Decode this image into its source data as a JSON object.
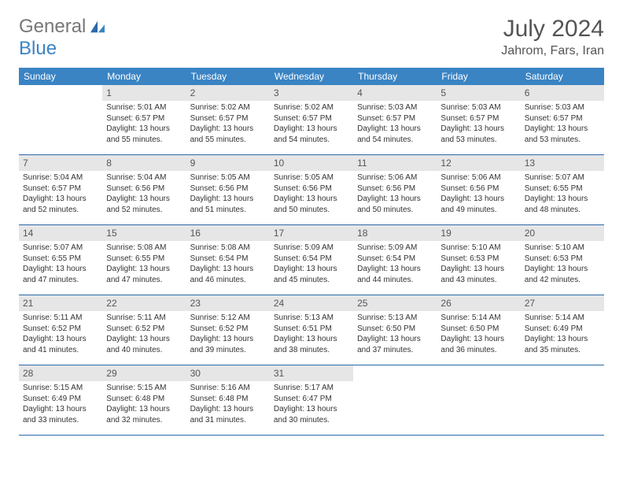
{
  "logo": {
    "text1": "General",
    "text2": "Blue"
  },
  "title": "July 2024",
  "location": "Jahrom, Fars, Iran",
  "colors": {
    "header_bg": "#3a84c4",
    "rule": "#2a6aa8",
    "daynum_bg": "#e6e6e6",
    "text": "#333333",
    "title_text": "#555555"
  },
  "days_of_week": [
    "Sunday",
    "Monday",
    "Tuesday",
    "Wednesday",
    "Thursday",
    "Friday",
    "Saturday"
  ],
  "weeks": [
    [
      {
        "n": "",
        "sr": "",
        "ss": "",
        "dl": ""
      },
      {
        "n": "1",
        "sr": "Sunrise: 5:01 AM",
        "ss": "Sunset: 6:57 PM",
        "dl": "Daylight: 13 hours and 55 minutes."
      },
      {
        "n": "2",
        "sr": "Sunrise: 5:02 AM",
        "ss": "Sunset: 6:57 PM",
        "dl": "Daylight: 13 hours and 55 minutes."
      },
      {
        "n": "3",
        "sr": "Sunrise: 5:02 AM",
        "ss": "Sunset: 6:57 PM",
        "dl": "Daylight: 13 hours and 54 minutes."
      },
      {
        "n": "4",
        "sr": "Sunrise: 5:03 AM",
        "ss": "Sunset: 6:57 PM",
        "dl": "Daylight: 13 hours and 54 minutes."
      },
      {
        "n": "5",
        "sr": "Sunrise: 5:03 AM",
        "ss": "Sunset: 6:57 PM",
        "dl": "Daylight: 13 hours and 53 minutes."
      },
      {
        "n": "6",
        "sr": "Sunrise: 5:03 AM",
        "ss": "Sunset: 6:57 PM",
        "dl": "Daylight: 13 hours and 53 minutes."
      }
    ],
    [
      {
        "n": "7",
        "sr": "Sunrise: 5:04 AM",
        "ss": "Sunset: 6:57 PM",
        "dl": "Daylight: 13 hours and 52 minutes."
      },
      {
        "n": "8",
        "sr": "Sunrise: 5:04 AM",
        "ss": "Sunset: 6:56 PM",
        "dl": "Daylight: 13 hours and 52 minutes."
      },
      {
        "n": "9",
        "sr": "Sunrise: 5:05 AM",
        "ss": "Sunset: 6:56 PM",
        "dl": "Daylight: 13 hours and 51 minutes."
      },
      {
        "n": "10",
        "sr": "Sunrise: 5:05 AM",
        "ss": "Sunset: 6:56 PM",
        "dl": "Daylight: 13 hours and 50 minutes."
      },
      {
        "n": "11",
        "sr": "Sunrise: 5:06 AM",
        "ss": "Sunset: 6:56 PM",
        "dl": "Daylight: 13 hours and 50 minutes."
      },
      {
        "n": "12",
        "sr": "Sunrise: 5:06 AM",
        "ss": "Sunset: 6:56 PM",
        "dl": "Daylight: 13 hours and 49 minutes."
      },
      {
        "n": "13",
        "sr": "Sunrise: 5:07 AM",
        "ss": "Sunset: 6:55 PM",
        "dl": "Daylight: 13 hours and 48 minutes."
      }
    ],
    [
      {
        "n": "14",
        "sr": "Sunrise: 5:07 AM",
        "ss": "Sunset: 6:55 PM",
        "dl": "Daylight: 13 hours and 47 minutes."
      },
      {
        "n": "15",
        "sr": "Sunrise: 5:08 AM",
        "ss": "Sunset: 6:55 PM",
        "dl": "Daylight: 13 hours and 47 minutes."
      },
      {
        "n": "16",
        "sr": "Sunrise: 5:08 AM",
        "ss": "Sunset: 6:54 PM",
        "dl": "Daylight: 13 hours and 46 minutes."
      },
      {
        "n": "17",
        "sr": "Sunrise: 5:09 AM",
        "ss": "Sunset: 6:54 PM",
        "dl": "Daylight: 13 hours and 45 minutes."
      },
      {
        "n": "18",
        "sr": "Sunrise: 5:09 AM",
        "ss": "Sunset: 6:54 PM",
        "dl": "Daylight: 13 hours and 44 minutes."
      },
      {
        "n": "19",
        "sr": "Sunrise: 5:10 AM",
        "ss": "Sunset: 6:53 PM",
        "dl": "Daylight: 13 hours and 43 minutes."
      },
      {
        "n": "20",
        "sr": "Sunrise: 5:10 AM",
        "ss": "Sunset: 6:53 PM",
        "dl": "Daylight: 13 hours and 42 minutes."
      }
    ],
    [
      {
        "n": "21",
        "sr": "Sunrise: 5:11 AM",
        "ss": "Sunset: 6:52 PM",
        "dl": "Daylight: 13 hours and 41 minutes."
      },
      {
        "n": "22",
        "sr": "Sunrise: 5:11 AM",
        "ss": "Sunset: 6:52 PM",
        "dl": "Daylight: 13 hours and 40 minutes."
      },
      {
        "n": "23",
        "sr": "Sunrise: 5:12 AM",
        "ss": "Sunset: 6:52 PM",
        "dl": "Daylight: 13 hours and 39 minutes."
      },
      {
        "n": "24",
        "sr": "Sunrise: 5:13 AM",
        "ss": "Sunset: 6:51 PM",
        "dl": "Daylight: 13 hours and 38 minutes."
      },
      {
        "n": "25",
        "sr": "Sunrise: 5:13 AM",
        "ss": "Sunset: 6:50 PM",
        "dl": "Daylight: 13 hours and 37 minutes."
      },
      {
        "n": "26",
        "sr": "Sunrise: 5:14 AM",
        "ss": "Sunset: 6:50 PM",
        "dl": "Daylight: 13 hours and 36 minutes."
      },
      {
        "n": "27",
        "sr": "Sunrise: 5:14 AM",
        "ss": "Sunset: 6:49 PM",
        "dl": "Daylight: 13 hours and 35 minutes."
      }
    ],
    [
      {
        "n": "28",
        "sr": "Sunrise: 5:15 AM",
        "ss": "Sunset: 6:49 PM",
        "dl": "Daylight: 13 hours and 33 minutes."
      },
      {
        "n": "29",
        "sr": "Sunrise: 5:15 AM",
        "ss": "Sunset: 6:48 PM",
        "dl": "Daylight: 13 hours and 32 minutes."
      },
      {
        "n": "30",
        "sr": "Sunrise: 5:16 AM",
        "ss": "Sunset: 6:48 PM",
        "dl": "Daylight: 13 hours and 31 minutes."
      },
      {
        "n": "31",
        "sr": "Sunrise: 5:17 AM",
        "ss": "Sunset: 6:47 PM",
        "dl": "Daylight: 13 hours and 30 minutes."
      },
      {
        "n": "",
        "sr": "",
        "ss": "",
        "dl": ""
      },
      {
        "n": "",
        "sr": "",
        "ss": "",
        "dl": ""
      },
      {
        "n": "",
        "sr": "",
        "ss": "",
        "dl": ""
      }
    ]
  ]
}
